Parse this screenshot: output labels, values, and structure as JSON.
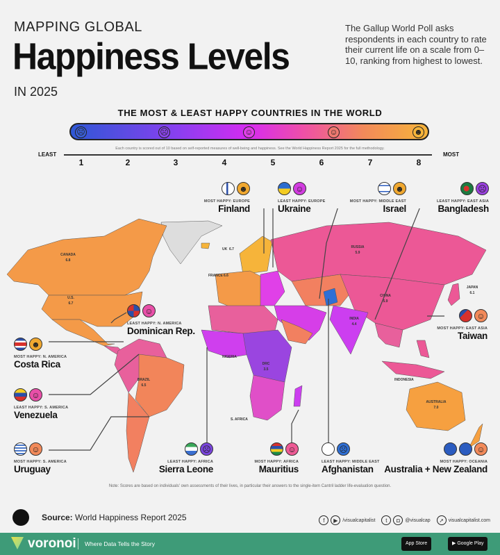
{
  "header": {
    "kicker": "MAPPING GLOBAL",
    "title": "Happiness Levels",
    "year": "IN 2025",
    "description": "The Gallup World Poll asks respondents in each country to rate their current life on a scale from 0–10, ranking from highest to lowest."
  },
  "scale": {
    "title": "THE MOST & LEAST HAPPY COUNTRIES IN THE WORLD",
    "note": "Each country is scored out of 10 based on self-reported measures of well-being and happiness. See the World Happiness Report 2025 for the full methodology.",
    "least": "LEAST",
    "most": "MOST",
    "ticks": [
      "1",
      "2",
      "3",
      "4",
      "5",
      "6",
      "7",
      "8"
    ],
    "colors": [
      "#2e58d6",
      "#8a3ff0",
      "#d62bf0",
      "#ee4fa8",
      "#f28a5a",
      "#f6b43a"
    ]
  },
  "callouts": [
    {
      "name": "Finland",
      "category": "MOST HAPPY: EUROPE",
      "face": "#f0a830"
    },
    {
      "name": "Ukraine",
      "category": "LEAST HAPPY: EUROPE",
      "face": "#d23ce0"
    },
    {
      "name": "Israel",
      "category": "MOST HAPPY: MIDDLE EAST",
      "face": "#f0a830"
    },
    {
      "name": "Bangladesh",
      "category": "LEAST HAPPY: EAST ASIA",
      "face": "#9a40e0"
    },
    {
      "name": "Dominican Rep.",
      "category": "LEAST HAPPY: N. AMERICA",
      "face": "#e84fa8"
    },
    {
      "name": "Costa Rica",
      "category": "MOST HAPPY: N. AMERICA",
      "face": "#f0a830"
    },
    {
      "name": "Venezuela",
      "category": "LEAST HAPPY: S. AMERICA",
      "face": "#e84fa8"
    },
    {
      "name": "Uruguay",
      "category": "MOST HAPPY: S. AMERICA",
      "face": "#f28a5a"
    },
    {
      "name": "Sierra Leone",
      "category": "LEAST HAPPY: AFRICA",
      "face": "#7a45dd"
    },
    {
      "name": "Mauritius",
      "category": "MOST HAPPY: AFRICA",
      "face": "#ee5a95"
    },
    {
      "name": "Afghanistan",
      "category": "LEAST HAPPY: MIDDLE EAST",
      "face": "#2e6fd6"
    },
    {
      "name": "Taiwan",
      "category": "MOST HAPPY: EAST ASIA",
      "face": "#f28a5a"
    },
    {
      "name": "Australia + New Zealand",
      "category": "MOST HAPPY: OCEANIA",
      "face": "#f28a5a"
    }
  ],
  "map_labels": [
    {
      "country": "CANADA",
      "score": "6.8"
    },
    {
      "country": "U.S.",
      "score": "6.7"
    },
    {
      "country": "RUSSIA",
      "score": "5.9"
    },
    {
      "country": "CHINA",
      "score": "5.9"
    },
    {
      "country": "JAPAN",
      "score": "6.1"
    },
    {
      "country": "INDIA",
      "score": "4.4"
    },
    {
      "country": "BRAZIL",
      "score": "6.5"
    },
    {
      "country": "AUSTRALIA",
      "score": "7.0"
    },
    {
      "country": "DRC",
      "score": "3.5"
    },
    {
      "country": "FRANCE",
      "score": "6.6"
    },
    {
      "country": "UK",
      "score": "6.7"
    },
    {
      "country": "NIGERIA",
      "score": ""
    },
    {
      "country": "S. AFRICA",
      "score": ""
    },
    {
      "country": "INDONESIA",
      "score": ""
    }
  ],
  "notes": {
    "bottom": "Note: Scores are based on individuals' own assessments of their lives, in particular their answers to the single-item Cantril ladder life-evaluation question."
  },
  "source": {
    "label": "Source:",
    "text": "World Happiness Report 2025"
  },
  "social": {
    "handle1": "/visualcapitalist",
    "handle2": "@visualcap",
    "site": "visualcapitalist.com"
  },
  "footer": {
    "brand": "voronoi",
    "tagline": "Where Data Tells the Story",
    "app_store": "App Store",
    "google_play": "Google Play",
    "brand_color": "#3e9b78"
  }
}
